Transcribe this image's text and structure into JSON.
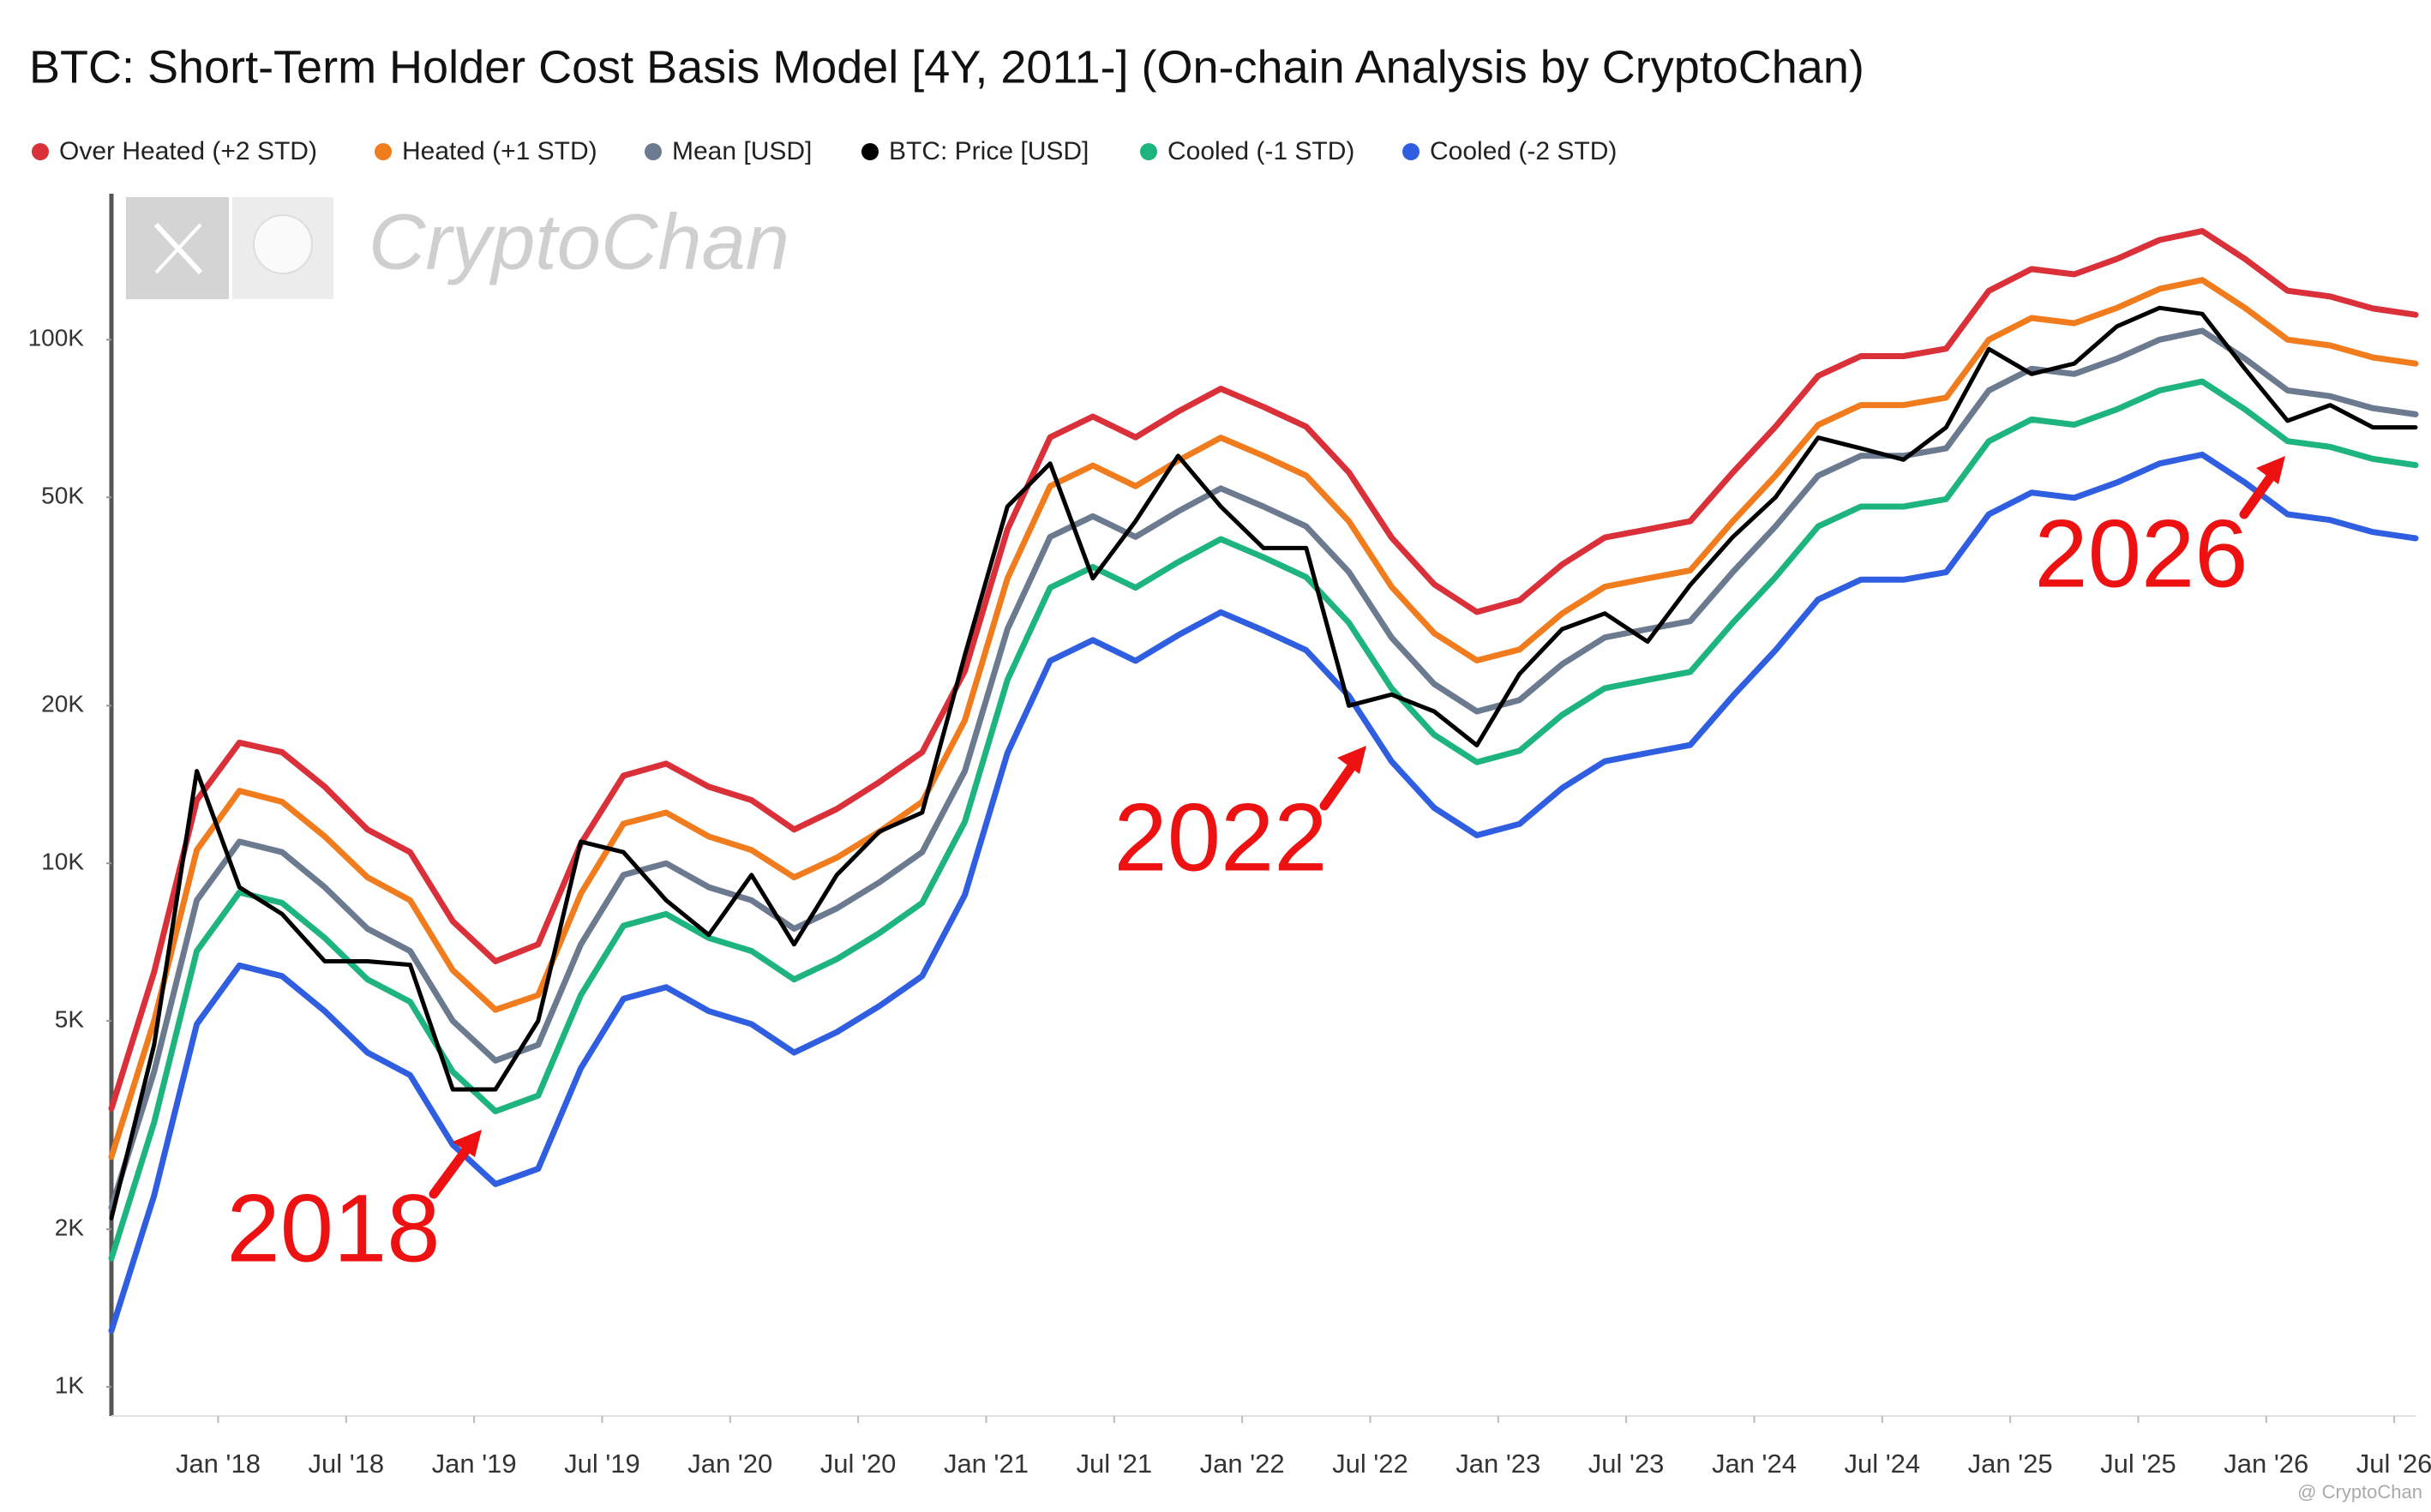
{
  "chart_data": {
    "type": "line",
    "title": "BTC: Short-Term Holder Cost Basis Model [4Y, 2011-] (On-chain Analysis by CryptoChan)",
    "watermark": "CryptoChan",
    "credit": "@ CryptoChan",
    "log_scale": true,
    "grid": false,
    "legend_position": "top",
    "annotations": [
      "2018",
      "2022",
      "2026"
    ],
    "x": [
      "2017-08",
      "2017-10",
      "2017-12",
      "2018-02",
      "2018-04",
      "2018-06",
      "2018-08",
      "2018-10",
      "2018-12",
      "2019-02",
      "2019-04",
      "2019-06",
      "2019-08",
      "2019-10",
      "2019-12",
      "2020-02",
      "2020-04",
      "2020-06",
      "2020-08",
      "2020-10",
      "2020-12",
      "2021-02",
      "2021-04",
      "2021-06",
      "2021-08",
      "2021-10",
      "2021-12",
      "2022-02",
      "2022-04",
      "2022-06",
      "2022-08",
      "2022-10",
      "2022-12",
      "2023-02",
      "2023-04",
      "2023-06",
      "2023-08",
      "2023-10",
      "2023-12",
      "2024-02",
      "2024-04",
      "2024-06",
      "2024-08",
      "2024-10",
      "2024-12",
      "2025-02",
      "2025-04",
      "2025-06",
      "2025-08",
      "2025-10",
      "2025-12",
      "2026-02",
      "2026-04",
      "2026-06",
      "2026-08"
    ],
    "xlim": [
      "2017-08",
      "2026-08"
    ],
    "xticks": [
      {
        "value": "2018-01",
        "label": "Jan '18"
      },
      {
        "value": "2018-07",
        "label": "Jul '18"
      },
      {
        "value": "2019-01",
        "label": "Jan '19"
      },
      {
        "value": "2019-07",
        "label": "Jul '19"
      },
      {
        "value": "2020-01",
        "label": "Jan '20"
      },
      {
        "value": "2020-07",
        "label": "Jul '20"
      },
      {
        "value": "2021-01",
        "label": "Jan '21"
      },
      {
        "value": "2021-07",
        "label": "Jul '21"
      },
      {
        "value": "2022-01",
        "label": "Jan '22"
      },
      {
        "value": "2022-07",
        "label": "Jul '22"
      },
      {
        "value": "2023-01",
        "label": "Jan '23"
      },
      {
        "value": "2023-07",
        "label": "Jul '23"
      },
      {
        "value": "2024-01",
        "label": "Jan '24"
      },
      {
        "value": "2024-07",
        "label": "Jul '24"
      },
      {
        "value": "2025-01",
        "label": "Jan '25"
      },
      {
        "value": "2025-07",
        "label": "Jul '25"
      },
      {
        "value": "2026-01",
        "label": "Jan '26"
      },
      {
        "value": "2026-07",
        "label": "Jul '26"
      }
    ],
    "ylim": [
      880,
      190000
    ],
    "yticks": [
      {
        "value": 1000,
        "label": "1K"
      },
      {
        "value": 2000,
        "label": "2K"
      },
      {
        "value": 5000,
        "label": "5K"
      },
      {
        "value": 10000,
        "label": "10K"
      },
      {
        "value": 20000,
        "label": "20K"
      },
      {
        "value": 50000,
        "label": "50K"
      },
      {
        "value": 100000,
        "label": "100K"
      }
    ],
    "series": [
      {
        "name": "Over Heated (+2 STD)",
        "color": "#d9303a",
        "values": [
          3400,
          6200,
          13200,
          17000,
          16300,
          14000,
          11600,
          10500,
          7750,
          6500,
          7000,
          10900,
          14700,
          15500,
          14000,
          13200,
          11600,
          12700,
          14300,
          16300,
          23300,
          43400,
          65100,
          71300,
          65100,
          72900,
          80600,
          74400,
          68200,
          55800,
          41900,
          34100,
          30200,
          31800,
          37200,
          41900,
          43400,
          45000,
          55800,
          68200,
          85300,
          93000,
          93000,
          96100,
          124000,
          136400,
          133300,
          142600,
          155000,
          161200,
          142600,
          124000,
          120900,
          114700,
          111600
        ]
      },
      {
        "name": "Heated (+1 STD)",
        "color": "#f07c1e",
        "values": [
          2750,
          5000,
          10600,
          13750,
          13100,
          11250,
          9400,
          8500,
          6250,
          5250,
          5600,
          8750,
          11900,
          12500,
          11250,
          10600,
          9400,
          10250,
          11500,
          13100,
          18750,
          35000,
          52500,
          57500,
          52500,
          58750,
          65000,
          60000,
          55000,
          45000,
          33750,
          27500,
          24400,
          25600,
          30000,
          33750,
          35000,
          36250,
          45000,
          55000,
          68750,
          75000,
          75000,
          77500,
          100000,
          110000,
          107500,
          115000,
          125000,
          130000,
          115000,
          100000,
          97500,
          92500,
          90000
        ]
      },
      {
        "name": "Mean [USD]",
        "color": "#6b7a8f",
        "values": [
          2200,
          4000,
          8500,
          11000,
          10500,
          9000,
          7500,
          6800,
          5000,
          4200,
          4500,
          7000,
          9500,
          10000,
          9000,
          8500,
          7500,
          8200,
          9200,
          10500,
          15000,
          28000,
          42000,
          46000,
          42000,
          47000,
          52000,
          48000,
          44000,
          36000,
          27000,
          22000,
          19500,
          20500,
          24000,
          27000,
          28000,
          29000,
          36000,
          44000,
          55000,
          60000,
          60000,
          62000,
          80000,
          88000,
          86000,
          92000,
          100000,
          104000,
          92000,
          80000,
          78000,
          74000,
          72000
        ]
      },
      {
        "name": "BTC: Price [USD]",
        "color": "#000000",
        "values": [
          2100,
          4500,
          15000,
          9000,
          8000,
          6500,
          6500,
          6400,
          3700,
          3700,
          5000,
          11000,
          10500,
          8500,
          7300,
          9500,
          7000,
          9500,
          11500,
          12500,
          25000,
          48000,
          58000,
          35000,
          45000,
          60000,
          48000,
          40000,
          40000,
          20000,
          21000,
          19500,
          16800,
          23000,
          28000,
          30000,
          26500,
          34000,
          42000,
          50000,
          65000,
          62000,
          59000,
          68000,
          96000,
          86000,
          90000,
          106000,
          115000,
          112000,
          88000,
          70000,
          75000,
          68000,
          68000
        ]
      },
      {
        "name": "Cooled (-1 STD)",
        "color": "#1db47d",
        "values": [
          1760,
          3200,
          6800,
          8800,
          8400,
          7200,
          6000,
          5440,
          4000,
          3360,
          3600,
          5600,
          7600,
          8000,
          7200,
          6800,
          6000,
          6560,
          7360,
          8400,
          12000,
          22400,
          33600,
          36800,
          33600,
          37600,
          41600,
          38400,
          35200,
          28800,
          21600,
          17600,
          15600,
          16400,
          19200,
          21600,
          22400,
          23200,
          28800,
          35200,
          44000,
          48000,
          48000,
          49600,
          64000,
          70400,
          68800,
          73600,
          80000,
          83200,
          73600,
          64000,
          62400,
          59200,
          57600
        ]
      },
      {
        "name": "Cooled (-2 STD)",
        "color": "#2f5fe0",
        "values": [
          1280,
          2320,
          4930,
          6380,
          6090,
          5220,
          4350,
          3940,
          2900,
          2440,
          2610,
          4060,
          5510,
          5800,
          5220,
          4930,
          4350,
          4760,
          5340,
          6090,
          8700,
          16240,
          24360,
          26680,
          24360,
          27260,
          30160,
          27840,
          25520,
          20880,
          15660,
          12760,
          11310,
          11890,
          13920,
          15660,
          16240,
          16820,
          20880,
          25520,
          31900,
          34800,
          34800,
          35960,
          46400,
          51040,
          49880,
          53360,
          58000,
          60320,
          53360,
          46400,
          45240,
          42920,
          41760
        ]
      }
    ]
  }
}
